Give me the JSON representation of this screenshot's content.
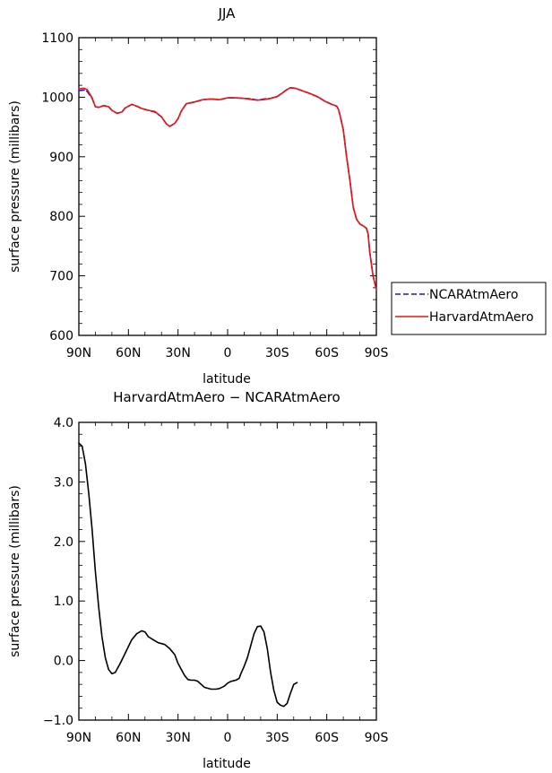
{
  "chart_data": [
    {
      "type": "line",
      "title": "JJA",
      "xlabel": "latitude",
      "ylabel": "surface pressure (millibars)",
      "xlim": [
        90,
        -90
      ],
      "ylim": [
        600,
        1100
      ],
      "x_ticks": [
        90,
        60,
        30,
        0,
        -30,
        -60,
        -90
      ],
      "x_tick_labels": [
        "90N",
        "60N",
        "30N",
        "0",
        "30S",
        "60S",
        "90S"
      ],
      "y_ticks": [
        600,
        700,
        800,
        900,
        1000,
        1100
      ],
      "y_tick_labels": [
        "600",
        "700",
        "800",
        "900",
        "1000",
        "1100"
      ],
      "legend_position": "right",
      "series": [
        {
          "name": "NCARAtmAero",
          "color": "#1a1acc",
          "dash": "dashed",
          "points": [
            [
              90,
              1011
            ],
            [
              87,
              1012
            ],
            [
              85,
              1010
            ],
            [
              82,
              998
            ],
            [
              80,
              984
            ],
            [
              78,
              983
            ],
            [
              75,
              986
            ],
            [
              72,
              984
            ],
            [
              70,
              978
            ],
            [
              67,
              973
            ],
            [
              64,
              975
            ],
            [
              62,
              982
            ],
            [
              58,
              988
            ],
            [
              55,
              985
            ],
            [
              52,
              981
            ],
            [
              48,
              978
            ],
            [
              44,
              975
            ],
            [
              40,
              967
            ],
            [
              37,
              955
            ],
            [
              35,
              951
            ],
            [
              32,
              956
            ],
            [
              30,
              964
            ],
            [
              28,
              977
            ],
            [
              25,
              989
            ],
            [
              20,
              992
            ],
            [
              15,
              996
            ],
            [
              10,
              997
            ],
            [
              5,
              996
            ],
            [
              0,
              999
            ],
            [
              -5,
              999
            ],
            [
              -10,
              998
            ],
            [
              -15,
              997
            ],
            [
              -18,
              995
            ],
            [
              -22,
              997
            ],
            [
              -26,
              998
            ],
            [
              -30,
              1001
            ],
            [
              -33,
              1007
            ],
            [
              -36,
              1013
            ],
            [
              -38,
              1016
            ],
            [
              -41,
              1015
            ],
            [
              -45,
              1011
            ],
            [
              -50,
              1006
            ],
            [
              -55,
              1000
            ],
            [
              -59,
              993
            ],
            [
              -63,
              988
            ],
            [
              -66,
              985
            ],
            [
              -67,
              980
            ],
            [
              -68,
              970
            ],
            [
              -70,
              945
            ],
            [
              -72,
              900
            ],
            [
              -74,
              860
            ],
            [
              -76,
              815
            ],
            [
              -78,
              795
            ],
            [
              -80,
              787
            ],
            [
              -82,
              784
            ],
            [
              -84,
              780
            ],
            [
              -85,
              770
            ],
            [
              -86,
              740
            ],
            [
              -88,
              700
            ],
            [
              -90,
              677
            ]
          ]
        },
        {
          "name": "HarvardAtmAero",
          "color": "#ee1111",
          "dash": "solid",
          "points": [
            [
              90,
              1014
            ],
            [
              87,
              1015
            ],
            [
              85,
              1013
            ],
            [
              82,
              999
            ],
            [
              80,
              984
            ],
            [
              78,
              983
            ],
            [
              75,
              986
            ],
            [
              72,
              984
            ],
            [
              70,
              978
            ],
            [
              67,
              973
            ],
            [
              64,
              975
            ],
            [
              62,
              982
            ],
            [
              58,
              988
            ],
            [
              55,
              985
            ],
            [
              52,
              981
            ],
            [
              48,
              978
            ],
            [
              44,
              976
            ],
            [
              40,
              967
            ],
            [
              37,
              955
            ],
            [
              35,
              951
            ],
            [
              32,
              956
            ],
            [
              30,
              964
            ],
            [
              28,
              977
            ],
            [
              25,
              989
            ],
            [
              20,
              992
            ],
            [
              15,
              996
            ],
            [
              10,
              997
            ],
            [
              5,
              996
            ],
            [
              0,
              999
            ],
            [
              -5,
              999
            ],
            [
              -10,
              998
            ],
            [
              -15,
              996
            ],
            [
              -18,
              995
            ],
            [
              -22,
              996
            ],
            [
              -26,
              998
            ],
            [
              -30,
              1001
            ],
            [
              -33,
              1007
            ],
            [
              -36,
              1013
            ],
            [
              -38,
              1016
            ],
            [
              -41,
              1015
            ],
            [
              -45,
              1011
            ],
            [
              -50,
              1006
            ],
            [
              -55,
              1000
            ],
            [
              -59,
              993
            ],
            [
              -63,
              988
            ],
            [
              -66,
              985
            ],
            [
              -67,
              980
            ],
            [
              -68,
              970
            ],
            [
              -70,
              945
            ],
            [
              -72,
              900
            ],
            [
              -74,
              860
            ],
            [
              -76,
              815
            ],
            [
              -78,
              795
            ],
            [
              -80,
              787
            ],
            [
              -82,
              784
            ],
            [
              -84,
              780
            ],
            [
              -85,
              770
            ],
            [
              -86,
              740
            ],
            [
              -88,
              700
            ],
            [
              -90,
              676
            ]
          ]
        }
      ]
    },
    {
      "type": "line",
      "title": "HarvardAtmAero − NCARAtmAero",
      "xlabel": "latitude",
      "ylabel": "surface pressure (millibars)",
      "xlim": [
        90,
        -90
      ],
      "ylim": [
        -1.0,
        4.0
      ],
      "x_ticks": [
        90,
        60,
        30,
        0,
        -30,
        -60,
        -90
      ],
      "x_tick_labels": [
        "90N",
        "60N",
        "30N",
        "0",
        "30S",
        "60S",
        "90S"
      ],
      "y_ticks": [
        -1,
        0,
        1,
        2,
        3,
        4
      ],
      "y_tick_labels": [
        "−1.0",
        "0.0",
        "1.0",
        "2.0",
        "3.0",
        "4.0"
      ],
      "series": [
        {
          "color": "#000000",
          "dash": "solid",
          "points": [
            [
              90,
              3.65
            ],
            [
              88,
              3.6
            ],
            [
              86,
              3.3
            ],
            [
              84,
              2.8
            ],
            [
              82,
              2.2
            ],
            [
              80,
              1.5
            ],
            [
              78,
              0.9
            ],
            [
              76,
              0.4
            ],
            [
              74,
              0.05
            ],
            [
              72,
              -0.15
            ],
            [
              70,
              -0.22
            ],
            [
              68,
              -0.2
            ],
            [
              65,
              -0.05
            ],
            [
              62,
              0.12
            ],
            [
              58,
              0.35
            ],
            [
              55,
              0.45
            ],
            [
              52,
              0.5
            ],
            [
              50,
              0.48
            ],
            [
              48,
              0.4
            ],
            [
              45,
              0.35
            ],
            [
              42,
              0.3
            ],
            [
              38,
              0.27
            ],
            [
              35,
              0.2
            ],
            [
              32,
              0.1
            ],
            [
              30,
              -0.05
            ],
            [
              28,
              -0.15
            ],
            [
              26,
              -0.25
            ],
            [
              24,
              -0.32
            ],
            [
              22,
              -0.33
            ],
            [
              20,
              -0.33
            ],
            [
              18,
              -0.35
            ],
            [
              16,
              -0.4
            ],
            [
              14,
              -0.45
            ],
            [
              10,
              -0.48
            ],
            [
              7,
              -0.48
            ],
            [
              5,
              -0.47
            ],
            [
              2,
              -0.43
            ],
            [
              0,
              -0.38
            ],
            [
              -2,
              -0.35
            ],
            [
              -5,
              -0.33
            ],
            [
              -7,
              -0.3
            ],
            [
              -8,
              -0.22
            ],
            [
              -10,
              -0.1
            ],
            [
              -12,
              0.05
            ],
            [
              -14,
              0.25
            ],
            [
              -16,
              0.45
            ],
            [
              -18,
              0.57
            ],
            [
              -20,
              0.58
            ],
            [
              -22,
              0.48
            ],
            [
              -24,
              0.2
            ],
            [
              -26,
              -0.2
            ],
            [
              -28,
              -0.5
            ],
            [
              -30,
              -0.7
            ],
            [
              -32,
              -0.75
            ],
            [
              -34,
              -0.77
            ],
            [
              -36,
              -0.72
            ],
            [
              -38,
              -0.55
            ],
            [
              -40,
              -0.4
            ],
            [
              -42,
              -0.37
            ]
          ]
        }
      ]
    }
  ]
}
